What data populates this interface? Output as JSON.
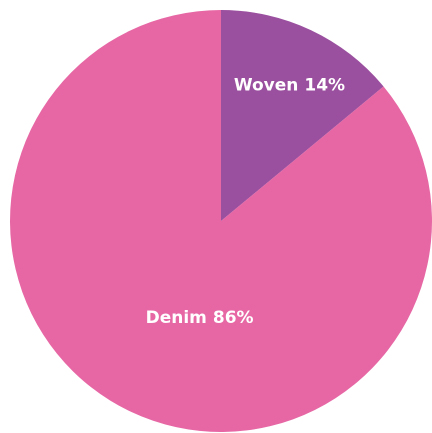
{
  "chart_data": {
    "type": "pie",
    "categories": [
      "Woven",
      "Denim"
    ],
    "values": [
      14,
      86
    ],
    "value_labels": [
      "14%",
      "86%"
    ],
    "colors": [
      "#9b4f9f",
      "#e667a4"
    ],
    "start_angle": 0,
    "direction": "clockwise"
  }
}
